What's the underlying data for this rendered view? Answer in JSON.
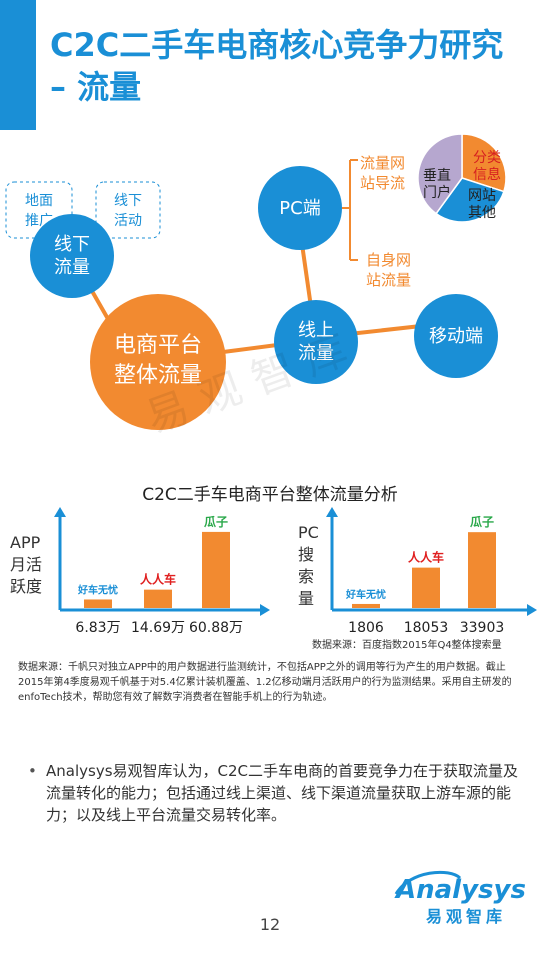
{
  "theme": {
    "blue": "#1a8fd6",
    "orange": "#f28a30",
    "purple": "#b6a7cf",
    "title_color": "#1a8fd6",
    "red_text": "#d62020"
  },
  "header": {
    "title": "C2C二手车电商核心竞争力研究 – 流量"
  },
  "mindmap": {
    "root": "电商平台整体流量",
    "offline": "线下流量",
    "offline_ground": "地面推广",
    "offline_events": "线下活动",
    "online": "线上流量",
    "pc": "PC端",
    "mobile": "移动端",
    "pc_nav": "流量网站导流",
    "pc_own": "自身网站流量",
    "pie": {
      "slices": [
        {
          "label": "分类信息",
          "color": "#f28a30",
          "value": 0.3
        },
        {
          "label": "网站其他",
          "color": "#1a8fd6",
          "value": 0.3
        },
        {
          "label": "垂直门户",
          "color": "#b6a7cf",
          "value": 0.4
        }
      ]
    }
  },
  "watermark": "易观智库",
  "chart_section": {
    "title": "C2C二手车电商平台整体流量分析"
  },
  "chart_data": [
    {
      "type": "bar",
      "ylabel": "APP月活跃度",
      "categories": [
        "好车无忧",
        "人人车",
        "瓜子"
      ],
      "values": [
        6.83,
        14.69,
        60.88
      ],
      "value_labels": [
        "6.83万",
        "14.69万",
        "60.88万"
      ],
      "unit": "万",
      "color": "#f28a30",
      "ylim": [
        0,
        68
      ]
    },
    {
      "type": "bar",
      "ylabel": "PC搜索量",
      "categories": [
        "好车无忧",
        "人人车",
        "瓜子"
      ],
      "values": [
        1806,
        18053,
        33903
      ],
      "value_labels": [
        "1806",
        "18053",
        "33903"
      ],
      "color": "#f28a30",
      "ylim": [
        0,
        38000
      ],
      "source_note": "数据来源：百度指数2015年Q4整体搜索量"
    }
  ],
  "brands": [
    "好车无忧",
    "人人车",
    "瓜子"
  ],
  "footnote": "数据来源：千帆只对独立APP中的用户数据进行监测统计，不包括APP之外的调用等行为产生的用户数据。截止2015年第4季度易观千帆基于对5.4亿累计装机覆盖、1.2亿移动端月活跃用户的行为监测结果。采用自主研发的enfoTech技术，帮助您有效了解数字消费者在智能手机上的行为轨迹。",
  "bullet": "Analysys易观智库认为，C2C二手车电商的首要竞争力在于获取流量及流量转化的能力；包括通过线上渠道、线下渠道流量获取上游车源的能力；以及线上平台流量交易转化率。",
  "logo": {
    "text": "Analysys",
    "subtext": "易观智库"
  },
  "page_number": "12"
}
